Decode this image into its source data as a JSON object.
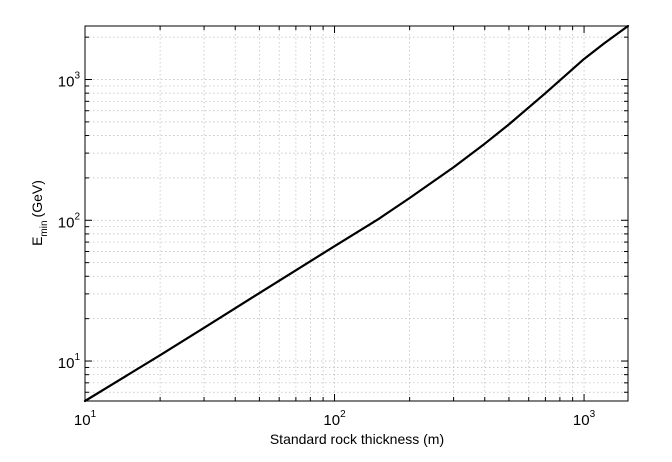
{
  "chart_data": {
    "type": "line",
    "title": "",
    "xlabel": "Standard rock thickness (m)",
    "ylabel": {
      "symbol": "E",
      "subscript": "min",
      "unit": "(GeV)"
    },
    "x_scale": "log",
    "y_scale": "log",
    "xlim": [
      10,
      1500
    ],
    "ylim": [
      5.2,
      2400
    ],
    "x_ticks": [
      {
        "value": 10,
        "base": "10",
        "exp": "1"
      },
      {
        "value": 100,
        "base": "10",
        "exp": "2"
      },
      {
        "value": 1000,
        "base": "10",
        "exp": "3"
      }
    ],
    "y_ticks": [
      {
        "value": 10,
        "base": "10",
        "exp": "1"
      },
      {
        "value": 100,
        "base": "10",
        "exp": "2"
      },
      {
        "value": 1000,
        "base": "10",
        "exp": "3"
      }
    ],
    "grid": true,
    "series": [
      {
        "color": "#000000",
        "x": [
          10,
          20,
          30,
          50,
          70,
          100,
          150,
          200,
          300,
          400,
          500,
          700,
          1000,
          1200,
          1500
        ],
        "y": [
          5.2,
          11.0,
          17.2,
          30.4,
          44.1,
          65.5,
          102,
          144,
          238,
          350,
          480,
          800,
          1400,
          1800,
          2400
        ]
      }
    ]
  }
}
